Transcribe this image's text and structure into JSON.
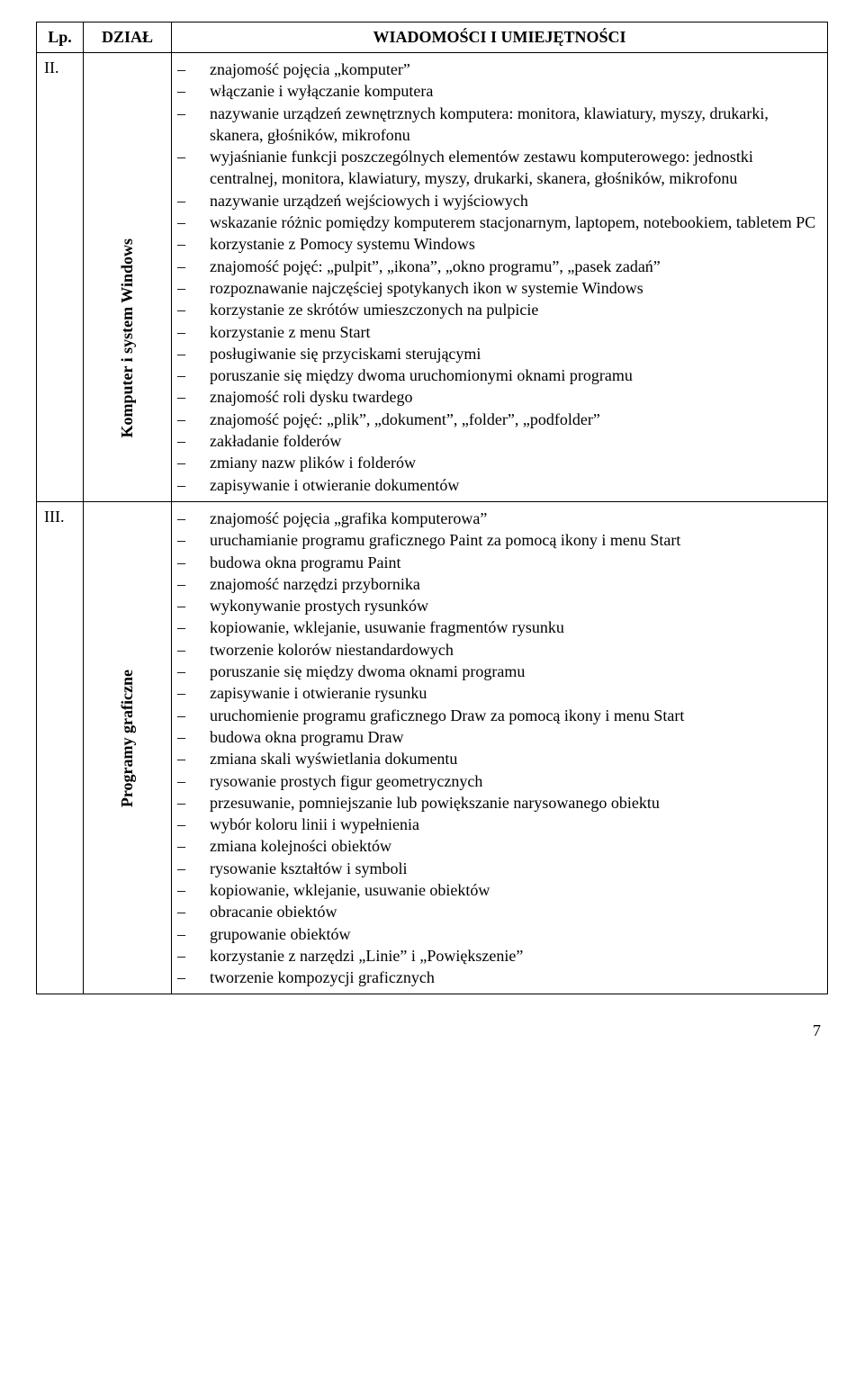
{
  "headers": {
    "lp": "Lp.",
    "dzial": "DZIAŁ",
    "wiadomosci": "WIADOMOŚCI I UMIEJĘTNOŚCI"
  },
  "rows": [
    {
      "lp": "II.",
      "dzial": "Komputer i system Windows",
      "items": [
        "znajomość pojęcia „komputer”",
        "włączanie i wyłączanie komputera",
        "nazywanie urządzeń zewnętrznych komputera: monitora, klawiatury, myszy, drukarki, skanera, głośników, mikrofonu",
        "wyjaśnianie funkcji poszczególnych elementów zestawu komputerowego: jednostki centralnej, monitora, klawiatury, myszy, drukarki, skanera, głośników, mikrofonu",
        "nazywanie urządzeń wejściowych i wyjściowych",
        "wskazanie różnic pomiędzy komputerem stacjonarnym, laptopem, notebookiem, tabletem PC",
        "korzystanie z Pomocy systemu Windows",
        "znajomość pojęć: „pulpit”, „ikona”, „okno programu”, „pasek zadań”",
        "rozpoznawanie najczęściej spotykanych ikon w systemie Windows",
        "korzystanie ze skrótów umieszczonych na pulpicie",
        "korzystanie z menu Start",
        "posługiwanie się przyciskami sterującymi",
        "poruszanie się między dwoma uruchomionymi oknami programu",
        "znajomość roli dysku twardego",
        "znajomość pojęć: „plik”, „dokument”, „folder”, „podfolder”",
        "zakładanie folderów",
        "zmiany nazw plików i folderów",
        "zapisywanie i otwieranie dokumentów"
      ]
    },
    {
      "lp": "III.",
      "dzial": "Programy graficzne",
      "items": [
        "znajomość pojęcia „grafika komputerowa”",
        "uruchamianie programu graficznego Paint za pomocą ikony i menu Start",
        "budowa okna programu Paint",
        "znajomość narzędzi przybornika",
        "wykonywanie prostych rysunków",
        "kopiowanie, wklejanie, usuwanie fragmentów rysunku",
        "tworzenie kolorów niestandardowych",
        "poruszanie się między dwoma oknami programu",
        "zapisywanie i otwieranie rysunku",
        "uruchomienie programu graficznego Draw za pomocą ikony i menu Start",
        "budowa okna programu Draw",
        "zmiana skali wyświetlania dokumentu",
        "rysowanie prostych figur geometrycznych",
        "przesuwanie, pomniejszanie lub powiększanie narysowanego obiektu",
        "wybór koloru linii i wypełnienia",
        "zmiana kolejności obiektów",
        "rysowanie kształtów i symboli",
        "kopiowanie, wklejanie, usuwanie obiektów",
        "obracanie obiektów",
        "grupowanie obiektów",
        "korzystanie z narzędzi „Linie” i „Powiększenie”",
        "tworzenie kompozycji graficznych"
      ]
    }
  ],
  "page_number": "7"
}
